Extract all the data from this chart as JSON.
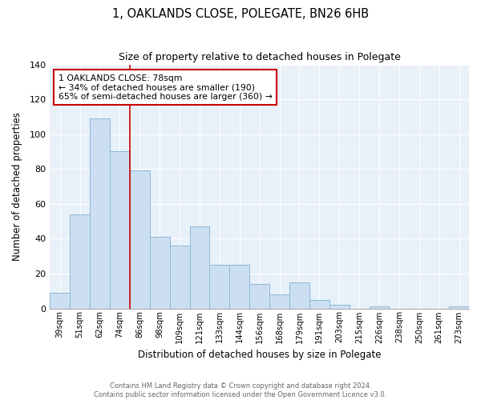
{
  "title": "1, OAKLANDS CLOSE, POLEGATE, BN26 6HB",
  "subtitle": "Size of property relative to detached houses in Polegate",
  "xlabel": "Distribution of detached houses by size in Polegate",
  "ylabel": "Number of detached properties",
  "categories": [
    "39sqm",
    "51sqm",
    "62sqm",
    "74sqm",
    "86sqm",
    "98sqm",
    "109sqm",
    "121sqm",
    "133sqm",
    "144sqm",
    "156sqm",
    "168sqm",
    "179sqm",
    "191sqm",
    "203sqm",
    "215sqm",
    "226sqm",
    "238sqm",
    "250sqm",
    "261sqm",
    "273sqm"
  ],
  "values": [
    9,
    54,
    109,
    90,
    79,
    41,
    36,
    47,
    25,
    25,
    14,
    8,
    15,
    5,
    2,
    0,
    1,
    0,
    0,
    0,
    1
  ],
  "bar_color": "#ccdff2",
  "bar_edge_color": "#88b8d8",
  "highlight_line_color": "#cc0000",
  "annotation_title": "1 OAKLANDS CLOSE: 78sqm",
  "annotation_line1": "← 34% of detached houses are smaller (190)",
  "annotation_line2": "65% of semi-detached houses are larger (360) →",
  "annotation_box_color": "#ffffff",
  "annotation_box_edge": "#cc0000",
  "ylim": [
    0,
    140
  ],
  "yticks": [
    0,
    20,
    40,
    60,
    80,
    100,
    120,
    140
  ],
  "footer1": "Contains HM Land Registry data © Crown copyright and database right 2024.",
  "footer2": "Contains public sector information licensed under the Open Government Licence v3.0.",
  "bg_color": "#e8f0f8"
}
